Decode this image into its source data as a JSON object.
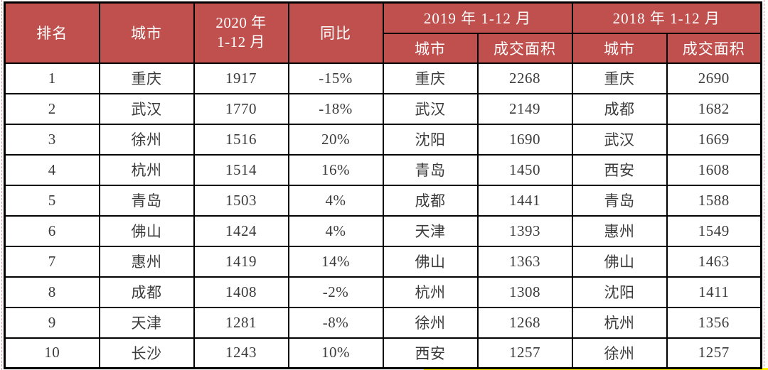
{
  "ui": {
    "header_2020": {
      "line1": "2020 年",
      "line2": "1-12 月"
    }
  },
  "colors": {
    "header_bg": "#c0504d",
    "header_text": "#ffffff",
    "border": "#000000",
    "body_text": "#3b3b3b",
    "boundary_dash": "#de9a96",
    "highlight": "#fff200"
  },
  "chart_data": {
    "type": "table",
    "title": "",
    "column_groups": [
      {
        "label": "2019 年 1-12 月",
        "columns": [
          4,
          5
        ]
      },
      {
        "label": "2018 年 1-12 月",
        "columns": [
          6,
          7
        ]
      }
    ],
    "columns": [
      "排名",
      "城市",
      "2020 年 1-12 月",
      "同比",
      "城市",
      "成交面积",
      "城市",
      "成交面积"
    ],
    "rows": [
      [
        "1",
        "重庆",
        1917,
        "-15%",
        "重庆",
        2268,
        "重庆",
        2690
      ],
      [
        "2",
        "武汉",
        1770,
        "-18%",
        "武汉",
        2149,
        "成都",
        1682
      ],
      [
        "3",
        "徐州",
        1516,
        "20%",
        "沈阳",
        1690,
        "武汉",
        1669
      ],
      [
        "4",
        "杭州",
        1514,
        "16%",
        "青岛",
        1450,
        "西安",
        1608
      ],
      [
        "5",
        "青岛",
        1503,
        "4%",
        "成都",
        1441,
        "青岛",
        1588
      ],
      [
        "6",
        "佛山",
        1424,
        "4%",
        "天津",
        1393,
        "惠州",
        1549
      ],
      [
        "7",
        "惠州",
        1419,
        "14%",
        "佛山",
        1363,
        "佛山",
        1463
      ],
      [
        "8",
        "成都",
        1408,
        "-2%",
        "杭州",
        1308,
        "沈阳",
        1411
      ],
      [
        "9",
        "天津",
        1281,
        "-8%",
        "徐州",
        1268,
        "杭州",
        1356
      ],
      [
        "10",
        "长沙",
        1243,
        "10%",
        "西安",
        1257,
        "徐州",
        1257
      ]
    ]
  }
}
